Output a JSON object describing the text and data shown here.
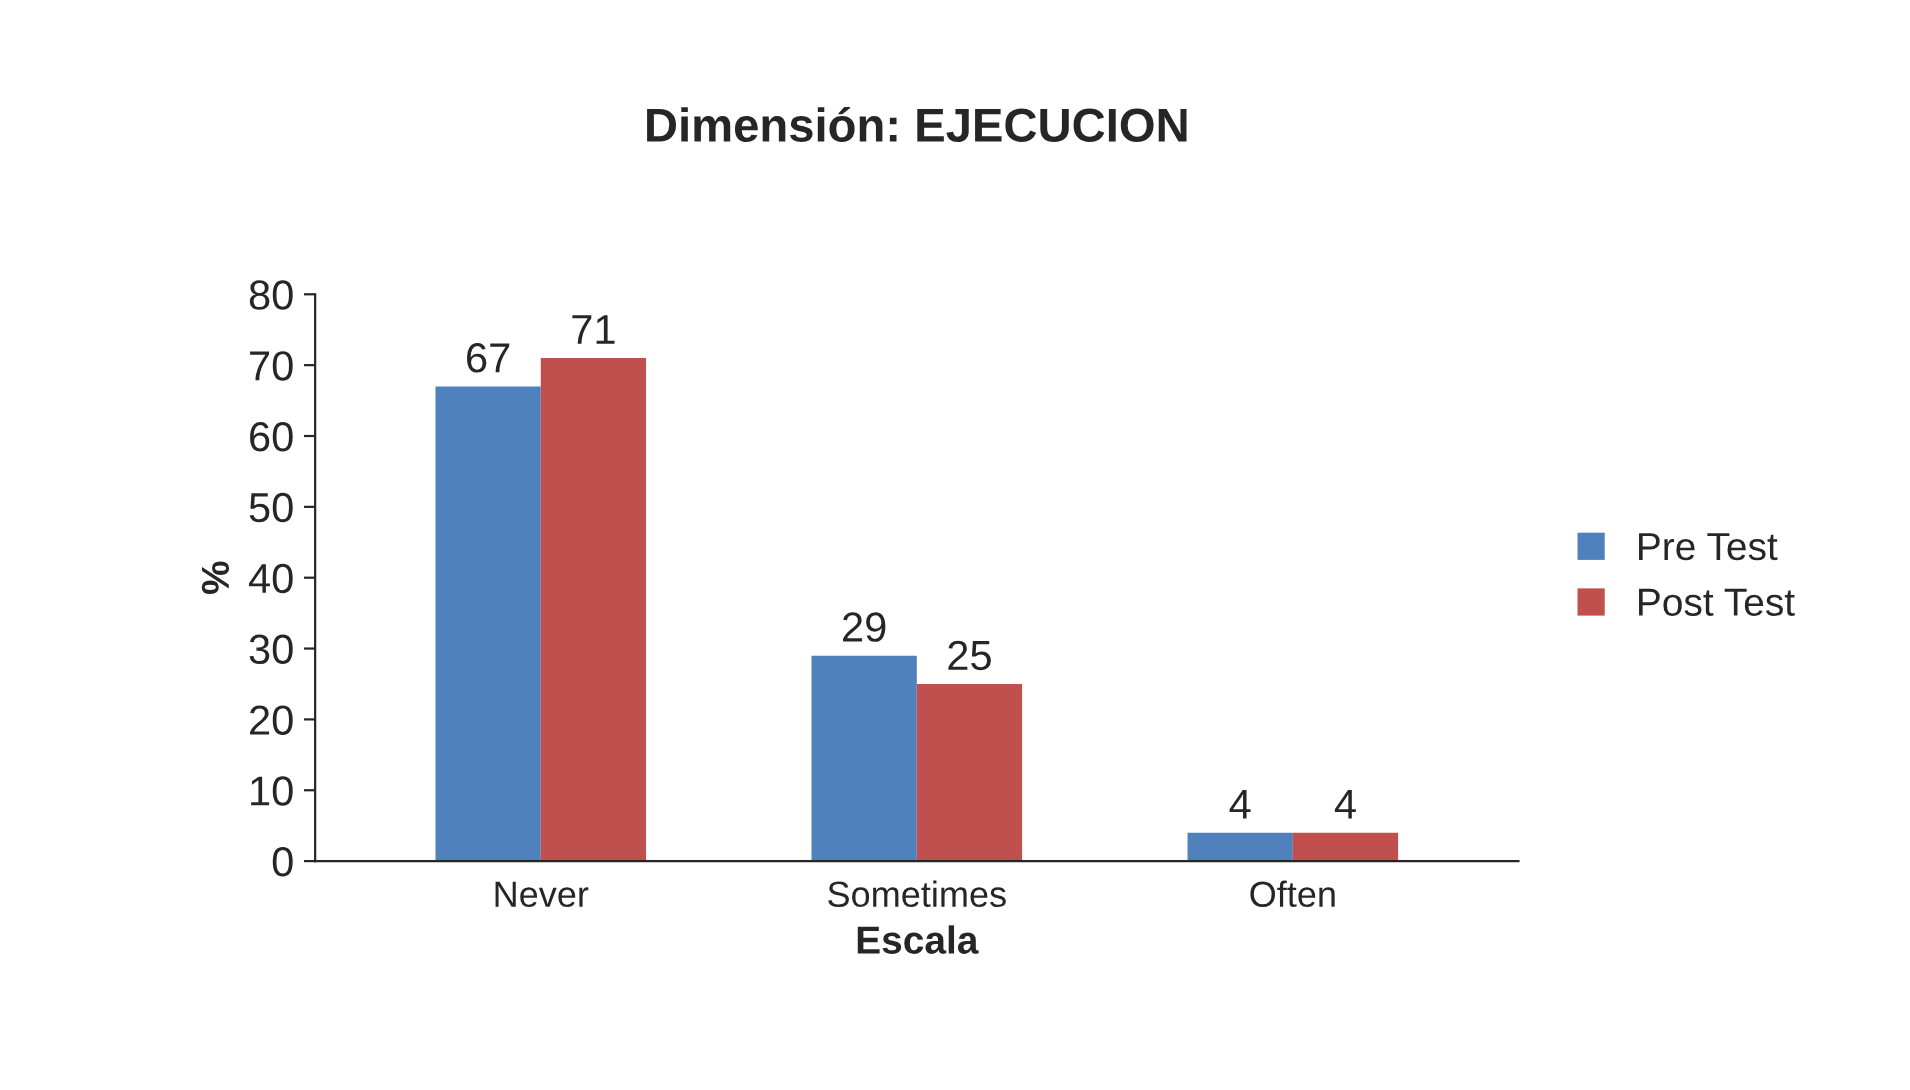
{
  "chart_data": {
    "type": "bar",
    "title": "Dimensión: EJECUCION",
    "xlabel": "Escala",
    "ylabel": "%",
    "categories": [
      "Never",
      "Sometimes",
      "Often"
    ],
    "series": [
      {
        "name": "Pre Test",
        "color": "#4f81bd",
        "values": [
          67,
          29,
          4
        ]
      },
      {
        "name": "Post Test",
        "color": "#c0504d",
        "values": [
          71,
          25,
          4
        ]
      }
    ],
    "ylim": [
      0,
      80
    ],
    "yticks": [
      0,
      10,
      20,
      30,
      40,
      50,
      60,
      70,
      80
    ],
    "grid": false,
    "legend": "right",
    "data_labels": true
  }
}
